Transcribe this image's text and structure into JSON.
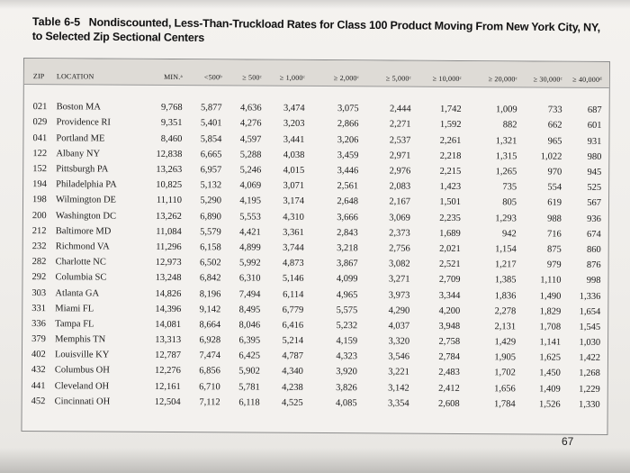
{
  "title": {
    "number": "Table 6-5",
    "text": "Nondiscounted, Less-Than-Truckload Rates for Class 100 Product Moving From New York City, NY, to Selected Zip Sectional Centers"
  },
  "columns": [
    "Zip",
    "Location",
    "Min.ᵃ",
    "<500ᵇ",
    "≥ 500ᶜ",
    "≥ 1,000ᶜ",
    "≥ 2,000ᶜ",
    "≥ 5,000ᶜ",
    "≥ 10,000ᶜ",
    "≥ 20,000ᶜ",
    "≥ 30,000ᶜ",
    "≥ 40,000ᵈ"
  ],
  "rows": [
    [
      "021",
      "Boston MA",
      "9,768",
      "5,877",
      "4,636",
      "3,474",
      "3,075",
      "2,444",
      "1,742",
      "1,009",
      "733",
      "687"
    ],
    [
      "029",
      "Providence RI",
      "9,351",
      "5,401",
      "4,276",
      "3,203",
      "2,866",
      "2,271",
      "1,592",
      "882",
      "662",
      "601"
    ],
    [
      "041",
      "Portland ME",
      "8,460",
      "5,854",
      "4,597",
      "3,441",
      "3,206",
      "2,537",
      "2,261",
      "1,321",
      "965",
      "931"
    ],
    [
      "122",
      "Albany NY",
      "12,838",
      "6,665",
      "5,288",
      "4,038",
      "3,459",
      "2,971",
      "2,218",
      "1,315",
      "1,022",
      "980"
    ],
    [
      "152",
      "Pittsburgh PA",
      "13,263",
      "6,957",
      "5,246",
      "4,015",
      "3,446",
      "2,976",
      "2,215",
      "1,265",
      "970",
      "945"
    ],
    [
      "194",
      "Philadelphia PA",
      "10,825",
      "5,132",
      "4,069",
      "3,071",
      "2,561",
      "2,083",
      "1,423",
      "735",
      "554",
      "525"
    ],
    [
      "198",
      "Wilmington DE",
      "11,110",
      "5,290",
      "4,195",
      "3,174",
      "2,648",
      "2,167",
      "1,501",
      "805",
      "619",
      "567"
    ],
    [
      "200",
      "Washington DC",
      "13,262",
      "6,890",
      "5,553",
      "4,310",
      "3,666",
      "3,069",
      "2,235",
      "1,293",
      "988",
      "936"
    ],
    [
      "212",
      "Baltimore MD",
      "11,084",
      "5,579",
      "4,421",
      "3,361",
      "2,843",
      "2,373",
      "1,689",
      "942",
      "716",
      "674"
    ],
    [
      "232",
      "Richmond VA",
      "11,296",
      "6,158",
      "4,899",
      "3,744",
      "3,218",
      "2,756",
      "2,021",
      "1,154",
      "875",
      "860"
    ],
    [
      "282",
      "Charlotte NC",
      "12,973",
      "6,502",
      "5,992",
      "4,873",
      "3,867",
      "3,082",
      "2,521",
      "1,217",
      "979",
      "876"
    ],
    [
      "292",
      "Columbia SC",
      "13,248",
      "6,842",
      "6,310",
      "5,146",
      "4,099",
      "3,271",
      "2,709",
      "1,385",
      "1,110",
      "998"
    ],
    [
      "303",
      "Atlanta GA",
      "14,826",
      "8,196",
      "7,494",
      "6,114",
      "4,965",
      "3,973",
      "3,344",
      "1,836",
      "1,490",
      "1,336"
    ],
    [
      "331",
      "Miami FL",
      "14,396",
      "9,142",
      "8,495",
      "6,779",
      "5,575",
      "4,290",
      "4,200",
      "2,278",
      "1,829",
      "1,654"
    ],
    [
      "336",
      "Tampa FL",
      "14,081",
      "8,664",
      "8,046",
      "6,416",
      "5,232",
      "4,037",
      "3,948",
      "2,131",
      "1,708",
      "1,545"
    ],
    [
      "379",
      "Memphis TN",
      "13,313",
      "6,928",
      "6,395",
      "5,214",
      "4,159",
      "3,320",
      "2,758",
      "1,429",
      "1,141",
      "1,030"
    ],
    [
      "402",
      "Louisville KY",
      "12,787",
      "7,474",
      "6,425",
      "4,787",
      "4,323",
      "3,546",
      "2,784",
      "1,905",
      "1,625",
      "1,422"
    ],
    [
      "432",
      "Columbus OH",
      "12,276",
      "6,856",
      "5,902",
      "4,340",
      "3,920",
      "3,221",
      "2,483",
      "1,702",
      "1,450",
      "1,268"
    ],
    [
      "441",
      "Cleveland OH",
      "12,161",
      "6,710",
      "5,781",
      "4,238",
      "3,826",
      "3,142",
      "2,412",
      "1,656",
      "1,409",
      "1,229"
    ],
    [
      "452",
      "Cincinnati OH",
      "12,504",
      "7,112",
      "6,118",
      "4,525",
      "4,085",
      "3,354",
      "2,608",
      "1,784",
      "1,526",
      "1,330"
    ]
  ],
  "page_number": "67"
}
